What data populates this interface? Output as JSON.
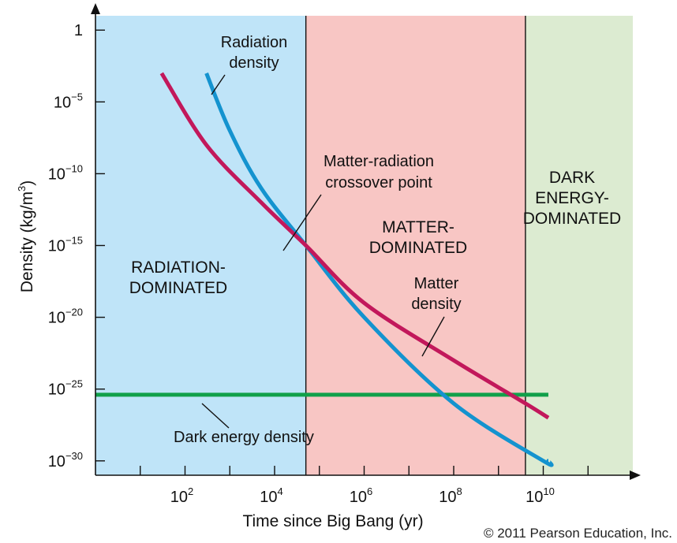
{
  "chart_data": {
    "type": "line",
    "xlabel": "Time since Big Bang (yr)",
    "ylabel": {
      "main": "Density (kg/m",
      "sup": "3",
      "close": ")"
    },
    "x_scale": "log",
    "y_scale": "log",
    "xlim": [
      1,
      1000000000000.0
    ],
    "ylim": [
      1e-31,
      10.0
    ],
    "x_ticks": [
      {
        "value": 100,
        "base": "10",
        "exp": "2"
      },
      {
        "value": 10000,
        "base": "10",
        "exp": "4"
      },
      {
        "value": 1000000,
        "base": "10",
        "exp": "6"
      },
      {
        "value": 100000000,
        "base": "10",
        "exp": "8"
      },
      {
        "value": 10000000000,
        "base": "10",
        "exp": "10"
      }
    ],
    "y_ticks": [
      {
        "value": 1,
        "base": "1",
        "exp": ""
      },
      {
        "value": 1e-05,
        "base": "10",
        "exp": "−5"
      },
      {
        "value": 1e-10,
        "base": "10",
        "exp": "−10"
      },
      {
        "value": 1e-15,
        "base": "10",
        "exp": "−15"
      },
      {
        "value": 1e-20,
        "base": "10",
        "exp": "−20"
      },
      {
        "value": 1e-25,
        "base": "10",
        "exp": "−25"
      },
      {
        "value": 1e-30,
        "base": "10",
        "exp": "−30"
      }
    ],
    "regions": [
      {
        "x_from": 1,
        "x_to": 50000,
        "label": [
          "RADIATION-",
          "DOMINATED"
        ],
        "color": "#bfe4f8"
      },
      {
        "x_from": 50000,
        "x_to": 4000000000.0,
        "label": [
          "MATTER-",
          "DOMINATED"
        ],
        "color": "#f8c6c4"
      },
      {
        "x_from": 4000000000.0,
        "x_to": 1000000000000.0,
        "label": [
          "DARK",
          "ENERGY-",
          "DOMINATED"
        ],
        "color": "#dcebd1"
      }
    ],
    "series": [
      {
        "name": "Radiation density",
        "color": "#1493cf",
        "points": [
          [
            300,
            0.001
          ],
          [
            1000,
            1e-07
          ],
          [
            5000,
            1e-11
          ],
          [
            50000,
            1e-15
          ],
          [
            1000000,
            1e-20
          ],
          [
            100000000,
            1e-26
          ],
          [
            10000000000.0,
            1e-30
          ],
          [
            13000000000.0,
            1e-30
          ]
        ]
      },
      {
        "name": "Matter density",
        "color": "#c2185b",
        "points": [
          [
            30,
            0.001
          ],
          [
            300,
            1e-08
          ],
          [
            5000,
            1e-12
          ],
          [
            50000,
            1e-15
          ],
          [
            1000000,
            1e-19
          ],
          [
            100000000,
            1e-23
          ],
          [
            4000000000.0,
            1e-26
          ],
          [
            13000000000.0,
            1e-27
          ]
        ]
      },
      {
        "name": "Dark energy density",
        "color": "#11a04a",
        "points": [
          [
            1,
            4e-26
          ],
          [
            13000000000.0,
            4e-26
          ]
        ]
      }
    ],
    "annotations": {
      "radiation": [
        "Radiation",
        "density"
      ],
      "crossover": [
        "Matter-radiation",
        "crossover point"
      ],
      "matter": [
        "Matter",
        "density"
      ],
      "dark_energy": "Dark energy density"
    }
  },
  "copyright": "© 2011 Pearson Education, Inc."
}
